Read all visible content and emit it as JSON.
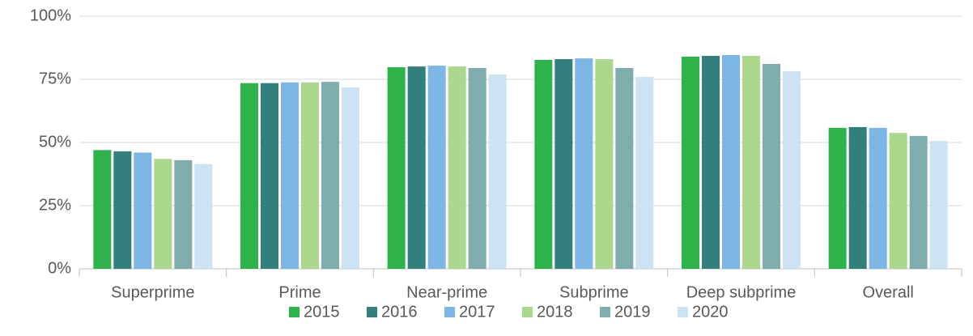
{
  "chart_data": {
    "type": "bar",
    "categories": [
      "Superprime",
      "Prime",
      "Near-prime",
      "Subprime",
      "Deep subprime",
      "Overall"
    ],
    "series": [
      {
        "name": "2015",
        "color": "#2db34a",
        "values": [
          47,
          73.5,
          79.8,
          82.7,
          84,
          55.8
        ]
      },
      {
        "name": "2016",
        "color": "#327f7c",
        "values": [
          46.5,
          73.5,
          80.1,
          83,
          84.3,
          56.1
        ]
      },
      {
        "name": "2017",
        "color": "#7db5e4",
        "values": [
          46,
          73.8,
          80.4,
          83.3,
          84.6,
          55.8
        ]
      },
      {
        "name": "2018",
        "color": "#acd88e",
        "values": [
          43.5,
          73.8,
          80.1,
          83,
          84.3,
          53.8
        ]
      },
      {
        "name": "2019",
        "color": "#7fadad",
        "values": [
          43,
          74,
          79.5,
          79.5,
          81.1,
          52.6
        ]
      },
      {
        "name": "2020",
        "color": "#cce3f4",
        "values": [
          41.5,
          71.8,
          76.9,
          76,
          78.2,
          50.6
        ]
      }
    ],
    "ylim": [
      0,
      100
    ],
    "yticks": [
      {
        "value": 0,
        "label": "0%"
      },
      {
        "value": 25,
        "label": "25%"
      },
      {
        "value": 50,
        "label": "50%"
      },
      {
        "value": 75,
        "label": "75%"
      },
      {
        "value": 100,
        "label": "100%"
      }
    ],
    "grid": true,
    "legend": "bottom"
  }
}
